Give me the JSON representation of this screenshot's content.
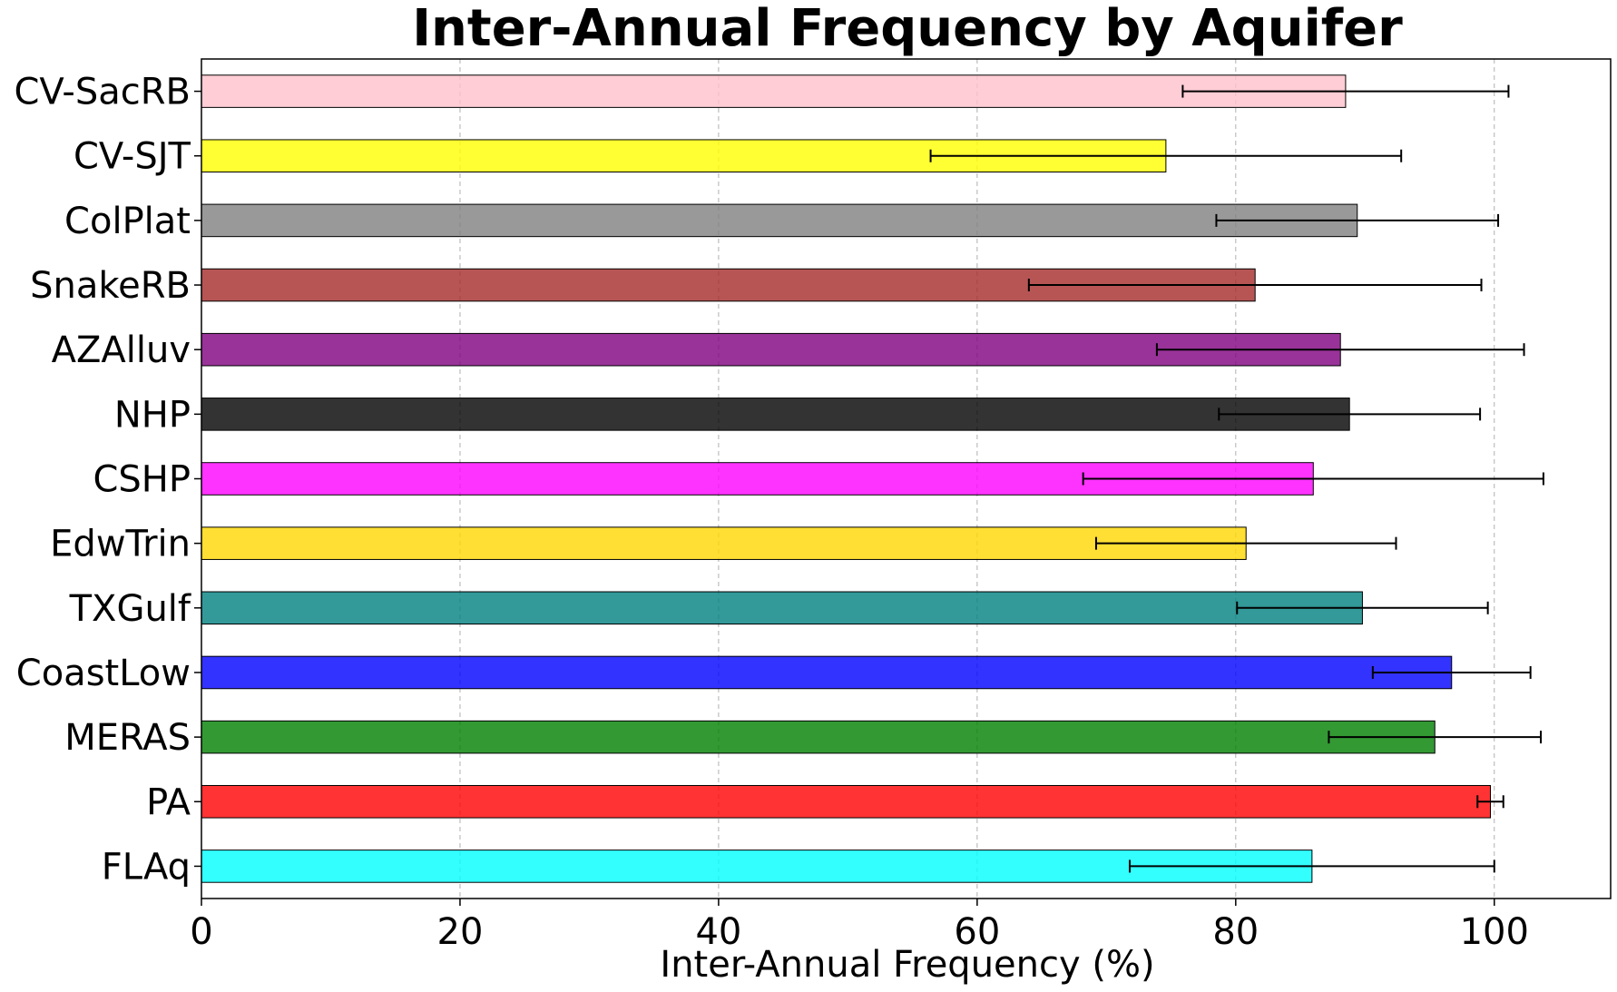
{
  "chart_data": {
    "type": "bar",
    "orientation": "horizontal",
    "title": "Inter-Annual Frequency by Aquifer",
    "xlabel": "Inter-Annual Frequency (%)",
    "ylabel": "",
    "xlim": [
      0,
      109
    ],
    "xticks": [
      0,
      20,
      40,
      60,
      80,
      100
    ],
    "grid": "x, dashed",
    "categories": [
      "CV-SacRB",
      "CV-SJT",
      "ColPlat",
      "SnakeRB",
      "AZAlluv",
      "NHP",
      "CSHP",
      "EdwTrin",
      "TXGulf",
      "CoastLow",
      "MERAS",
      "PA",
      "FLAq"
    ],
    "values": [
      88.5,
      74.6,
      89.4,
      81.5,
      88.1,
      88.8,
      86.0,
      80.8,
      89.8,
      96.7,
      95.4,
      99.7,
      85.9
    ],
    "errors": [
      12.6,
      18.2,
      10.9,
      17.5,
      14.2,
      10.1,
      17.8,
      11.6,
      9.7,
      6.1,
      8.2,
      1.0,
      14.1
    ],
    "colors": [
      "#ffc0cb",
      "#ffff00",
      "#808080",
      "#a52a2a",
      "#800080",
      "#000000",
      "#ff00ff",
      "#ffd700",
      "#008080",
      "#0000ff",
      "#008000",
      "#ff0000",
      "#00ffff"
    ]
  }
}
